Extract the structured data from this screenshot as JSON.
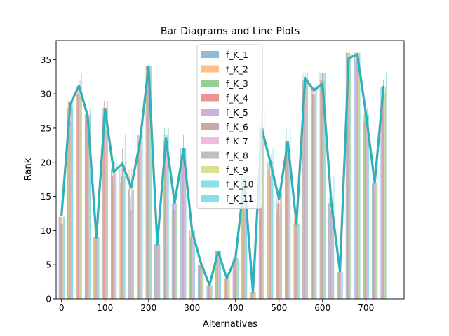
{
  "chart_data": {
    "type": "bar",
    "title": "Bar Diagrams and Line Plots",
    "xlabel": "Alternatives",
    "ylabel": "Rank",
    "xlim": [
      -12.5,
      787.5
    ],
    "ylim": [
      0,
      37.8
    ],
    "xticks": [
      0,
      100,
      200,
      300,
      400,
      500,
      600,
      700
    ],
    "yticks": [
      0,
      5,
      10,
      15,
      20,
      25,
      30,
      35
    ],
    "grid": false,
    "legend_position": "upper center",
    "x": [
      0,
      20,
      40,
      60,
      80,
      100,
      120,
      140,
      160,
      180,
      200,
      220,
      240,
      260,
      280,
      300,
      320,
      340,
      360,
      380,
      400,
      420,
      440,
      460,
      480,
      500,
      520,
      540,
      560,
      580,
      600,
      620,
      640,
      660,
      680,
      700,
      720,
      740
    ],
    "series": [
      {
        "name": "f_K_1",
        "color": "#1f77b4",
        "values": [
          12,
          28,
          31,
          27,
          9,
          28,
          19,
          19,
          16,
          24,
          34,
          8,
          24,
          14,
          22,
          10,
          5,
          2,
          7,
          3,
          6,
          18,
          1,
          25,
          20,
          15,
          23,
          11,
          32,
          30,
          33,
          14,
          4,
          36,
          36,
          27,
          17,
          31
        ]
      },
      {
        "name": "f_K_2",
        "color": "#ff7f0e",
        "values": [
          12,
          29,
          30,
          27,
          9,
          27,
          18,
          17,
          19,
          22,
          34,
          8,
          23,
          13,
          21,
          10,
          6,
          2,
          7,
          3,
          5,
          17,
          1,
          27,
          19,
          13,
          22,
          12,
          33,
          31,
          32,
          15,
          4,
          36,
          35,
          26,
          16,
          31
        ]
      },
      {
        "name": "f_K_3",
        "color": "#2ca02c",
        "values": [
          12,
          29,
          31,
          26,
          9,
          28,
          20,
          18,
          18,
          23,
          33,
          8,
          25,
          14,
          22,
          9,
          5,
          2,
          7,
          3,
          6,
          18,
          1,
          24,
          21,
          14,
          25,
          11,
          32,
          30,
          33,
          14,
          4,
          35,
          36,
          28,
          17,
          30
        ]
      },
      {
        "name": "f_K_4",
        "color": "#d62728",
        "values": [
          12,
          28,
          30,
          27,
          9,
          29,
          18,
          18,
          17,
          24,
          34,
          8,
          23,
          14,
          22,
          10,
          5,
          2,
          7,
          3,
          6,
          17,
          1,
          25,
          20,
          15,
          23,
          11,
          32,
          31,
          32,
          14,
          4,
          36,
          35,
          27,
          17,
          31
        ]
      },
      {
        "name": "f_K_5",
        "color": "#9467bd",
        "values": [
          11,
          28,
          31,
          26,
          9,
          28,
          19,
          20,
          15,
          23,
          33,
          8,
          24,
          14,
          22,
          10,
          5,
          2,
          6,
          3,
          6,
          18,
          1,
          26,
          20,
          14,
          22,
          11,
          32,
          30,
          33,
          13,
          4,
          35,
          36,
          27,
          18,
          31
        ]
      },
      {
        "name": "f_K_6",
        "color": "#8c564b",
        "values": [
          12,
          26,
          30,
          25,
          9,
          27,
          16,
          22,
          13,
          22,
          34,
          8,
          22,
          13,
          24,
          10,
          6,
          2,
          6,
          3,
          7,
          16,
          1,
          27,
          18,
          12,
          21,
          11,
          32,
          30,
          33,
          15,
          4,
          36,
          36,
          26,
          15,
          32
        ]
      },
      {
        "name": "f_K_7",
        "color": "#e377c2",
        "values": [
          12,
          29,
          31,
          27,
          9,
          27,
          19,
          18,
          19,
          23,
          34,
          8,
          23,
          14,
          21,
          10,
          5,
          2,
          7,
          3,
          6,
          17,
          1,
          25,
          20,
          14,
          22,
          11,
          33,
          31,
          32,
          14,
          4,
          35,
          36,
          27,
          17,
          31
        ]
      },
      {
        "name": "f_K_8",
        "color": "#7f7f7f",
        "values": [
          11,
          28,
          32,
          26,
          9,
          28,
          20,
          19,
          16,
          24,
          33,
          8,
          24,
          14,
          22,
          9,
          5,
          2,
          7,
          3,
          6,
          18,
          1,
          25,
          21,
          15,
          23,
          11,
          32,
          30,
          33,
          14,
          4,
          36,
          35,
          28,
          17,
          30
        ]
      },
      {
        "name": "f_K_9",
        "color": "#bcbd22",
        "values": [
          12,
          29,
          30,
          27,
          9,
          28,
          19,
          18,
          18,
          23,
          34,
          8,
          24,
          14,
          22,
          10,
          5,
          2,
          7,
          3,
          6,
          17,
          1,
          25,
          20,
          14,
          22,
          11,
          32,
          31,
          32,
          14,
          4,
          36,
          36,
          27,
          17,
          31
        ]
      },
      {
        "name": "f_K_10",
        "color": "#17becf",
        "values": [
          12,
          28,
          31,
          28,
          9,
          28,
          18,
          19,
          17,
          24,
          34,
          8,
          23,
          14,
          22,
          10,
          5,
          2,
          7,
          3,
          6,
          18,
          1,
          25,
          20,
          15,
          23,
          11,
          32,
          30,
          33,
          14,
          4,
          35,
          36,
          27,
          17,
          31
        ]
      },
      {
        "name": "f_K_11",
        "color": "#17becf",
        "values": [
          12,
          29,
          33,
          27,
          9,
          29,
          21,
          24,
          16,
          25,
          34,
          8,
          25,
          16,
          22,
          10,
          6,
          2,
          7,
          3,
          6,
          18,
          1,
          28,
          22,
          17,
          25,
          11,
          33,
          31,
          33,
          18,
          4,
          36,
          36,
          27,
          20,
          33
        ]
      }
    ],
    "line": {
      "x": [
        0,
        20,
        40,
        60,
        80,
        100,
        120,
        140,
        160,
        180,
        200,
        220,
        240,
        260,
        280,
        300,
        320,
        340,
        360,
        380,
        400,
        420,
        440,
        460,
        480,
        500,
        520,
        540,
        560,
        580,
        600,
        620,
        640,
        660,
        680,
        700,
        720,
        740
      ],
      "values": [
        12.3,
        28.5,
        31.2,
        26.8,
        9.0,
        27.8,
        18.6,
        19.8,
        16.3,
        22.9,
        34.0,
        8.0,
        23.5,
        14.0,
        21.9,
        10.0,
        5.3,
        2.0,
        6.9,
        3.0,
        6.0,
        17.5,
        1.0,
        25.0,
        20.0,
        14.6,
        23.0,
        11.0,
        32.3,
        30.5,
        31.5,
        14.2,
        4.0,
        35.2,
        35.8,
        27.0,
        17.0,
        31.0
      ]
    }
  }
}
